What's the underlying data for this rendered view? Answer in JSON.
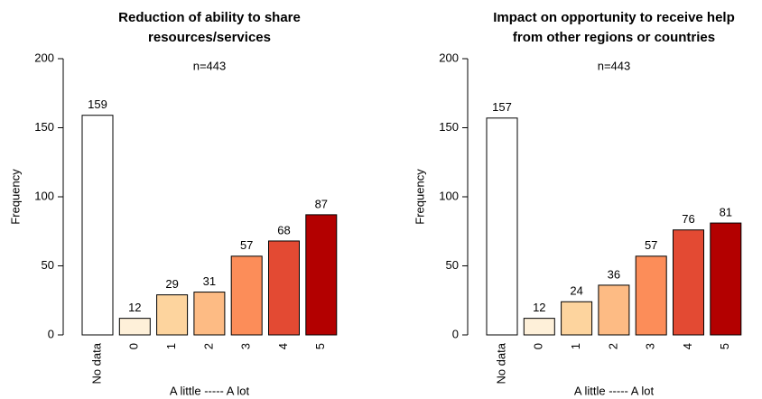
{
  "chart_data": [
    {
      "type": "bar",
      "title": [
        "Reduction of ability to share",
        "resources/services"
      ],
      "annotation": "n=443",
      "xlabel": "A little ----- A lot",
      "ylabel": "Frequency",
      "categories": [
        "No data",
        "0",
        "1",
        "2",
        "3",
        "4",
        "5"
      ],
      "values": [
        159,
        12,
        29,
        31,
        57,
        68,
        87
      ],
      "colors": [
        "#ffffff",
        "#fef0d9",
        "#fdd49e",
        "#fdbb84",
        "#fc8d59",
        "#e34a33",
        "#b30000"
      ],
      "ylim": [
        0,
        200
      ],
      "yticks": [
        0,
        50,
        100,
        150,
        200
      ]
    },
    {
      "type": "bar",
      "title": [
        "Impact on opportunity to receive help",
        "from other regions or countries"
      ],
      "annotation": "n=443",
      "xlabel": "A little ----- A lot",
      "ylabel": "Frequency",
      "categories": [
        "No data",
        "0",
        "1",
        "2",
        "3",
        "4",
        "5"
      ],
      "values": [
        157,
        12,
        24,
        36,
        57,
        76,
        81
      ],
      "colors": [
        "#ffffff",
        "#fef0d9",
        "#fdd49e",
        "#fdbb84",
        "#fc8d59",
        "#e34a33",
        "#b30000"
      ],
      "ylim": [
        0,
        200
      ],
      "yticks": [
        0,
        50,
        100,
        150,
        200
      ]
    }
  ]
}
